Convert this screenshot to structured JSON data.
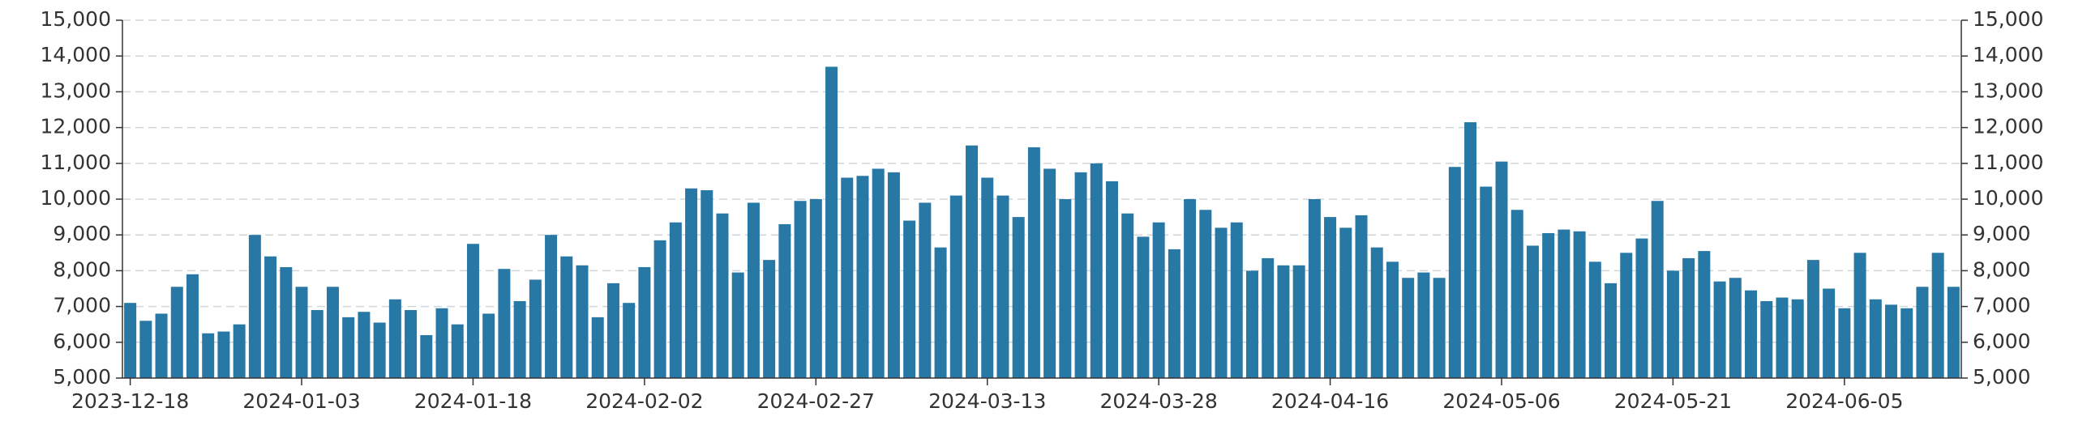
{
  "chart_data": {
    "type": "bar",
    "color": "#2878a6",
    "grid": true,
    "categories": [
      "2023-12-18",
      null,
      null,
      null,
      null,
      null,
      null,
      null,
      null,
      null,
      null,
      "2024-01-03",
      null,
      null,
      null,
      null,
      null,
      null,
      null,
      null,
      null,
      null,
      "2024-01-18",
      null,
      null,
      null,
      null,
      null,
      null,
      null,
      null,
      null,
      null,
      "2024-02-02",
      null,
      null,
      null,
      null,
      null,
      null,
      null,
      null,
      null,
      null,
      "2024-02-27",
      null,
      null,
      null,
      null,
      null,
      null,
      null,
      null,
      null,
      null,
      "2024-03-13",
      null,
      null,
      null,
      null,
      null,
      null,
      null,
      null,
      null,
      null,
      "2024-03-28",
      null,
      null,
      null,
      null,
      null,
      null,
      null,
      null,
      null,
      null,
      "2024-04-16",
      null,
      null,
      null,
      null,
      null,
      null,
      null,
      null,
      null,
      null,
      "2024-05-06",
      null,
      null,
      null,
      null,
      null,
      null,
      null,
      null,
      null,
      null,
      "2024-05-21",
      null,
      null,
      null,
      null,
      null,
      null,
      null,
      null,
      null,
      null,
      "2024-06-05",
      null,
      null,
      null,
      null,
      null,
      null,
      null
    ],
    "values": [
      7100,
      6600,
      6800,
      7550,
      7900,
      6250,
      6300,
      6500,
      9000,
      8400,
      8100,
      7550,
      6900,
      7550,
      6700,
      6850,
      6550,
      7200,
      6900,
      6200,
      6950,
      6500,
      8750,
      6800,
      8050,
      7150,
      7750,
      9000,
      8400,
      8150,
      6700,
      7650,
      7100,
      8100,
      8850,
      9350,
      10300,
      10250,
      9600,
      7950,
      9900,
      8300,
      9300,
      9950,
      10000,
      13700,
      10600,
      10650,
      10850,
      10750,
      9400,
      9900,
      8650,
      10100,
      11500,
      10600,
      10100,
      9500,
      11450,
      10850,
      10000,
      10750,
      11000,
      10500,
      9600,
      8950,
      9350,
      8600,
      10000,
      9700,
      9200,
      9350,
      8000,
      8350,
      8150,
      8150,
      10000,
      9500,
      9200,
      9550,
      8650,
      8250,
      7800,
      7950,
      7800,
      10900,
      12150,
      10350,
      11050,
      9700,
      8700,
      9050,
      9150,
      9100,
      8250,
      7650,
      8500,
      8900,
      9950,
      8000,
      8350,
      8550,
      7700,
      7800,
      7450,
      7150,
      7250,
      7200,
      8300,
      7500,
      6950,
      8500,
      7200,
      7050,
      6950,
      7550,
      8500,
      7550
    ],
    "ylim": [
      5000,
      15000
    ],
    "yticks": [
      {
        "value": 5000,
        "label": "5,000"
      },
      {
        "value": 6000,
        "label": "6,000"
      },
      {
        "value": 7000,
        "label": "7,000"
      },
      {
        "value": 8000,
        "label": "8,000"
      },
      {
        "value": 9000,
        "label": "9,000"
      },
      {
        "value": 10000,
        "label": "10,000"
      },
      {
        "value": 11000,
        "label": "11,000"
      },
      {
        "value": 12000,
        "label": "12,000"
      },
      {
        "value": 13000,
        "label": "13,000"
      },
      {
        "value": 14000,
        "label": "14,000"
      },
      {
        "value": 15000,
        "label": "15,000"
      }
    ]
  }
}
